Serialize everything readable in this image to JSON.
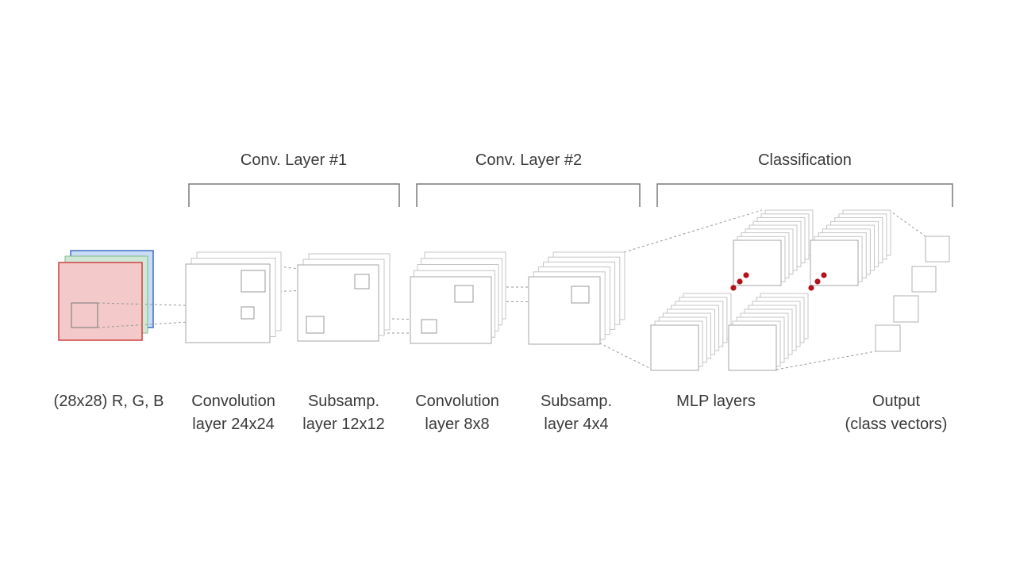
{
  "sections": {
    "conv1": "Conv. Layer #1",
    "conv2": "Conv. Layer #2",
    "classification": "Classification"
  },
  "stages": {
    "input": [
      "(28x28) R, G, B"
    ],
    "conv1": [
      "Convolution",
      "layer 24x24"
    ],
    "sub1": [
      "Subsamp.",
      "layer 12x12"
    ],
    "conv2": [
      "Convolution",
      "layer 8x8"
    ],
    "sub2": [
      "Subsamp.",
      "layer 4x4"
    ],
    "mlp": [
      "MLP layers"
    ],
    "output": [
      "Output",
      "(class vectors)"
    ]
  },
  "colors": {
    "channel_red": "#f3c9c9",
    "channel_green": "#cfe8d6",
    "channel_blue": "#c9dcf5",
    "ellipsis_dots": "#b3121c"
  }
}
